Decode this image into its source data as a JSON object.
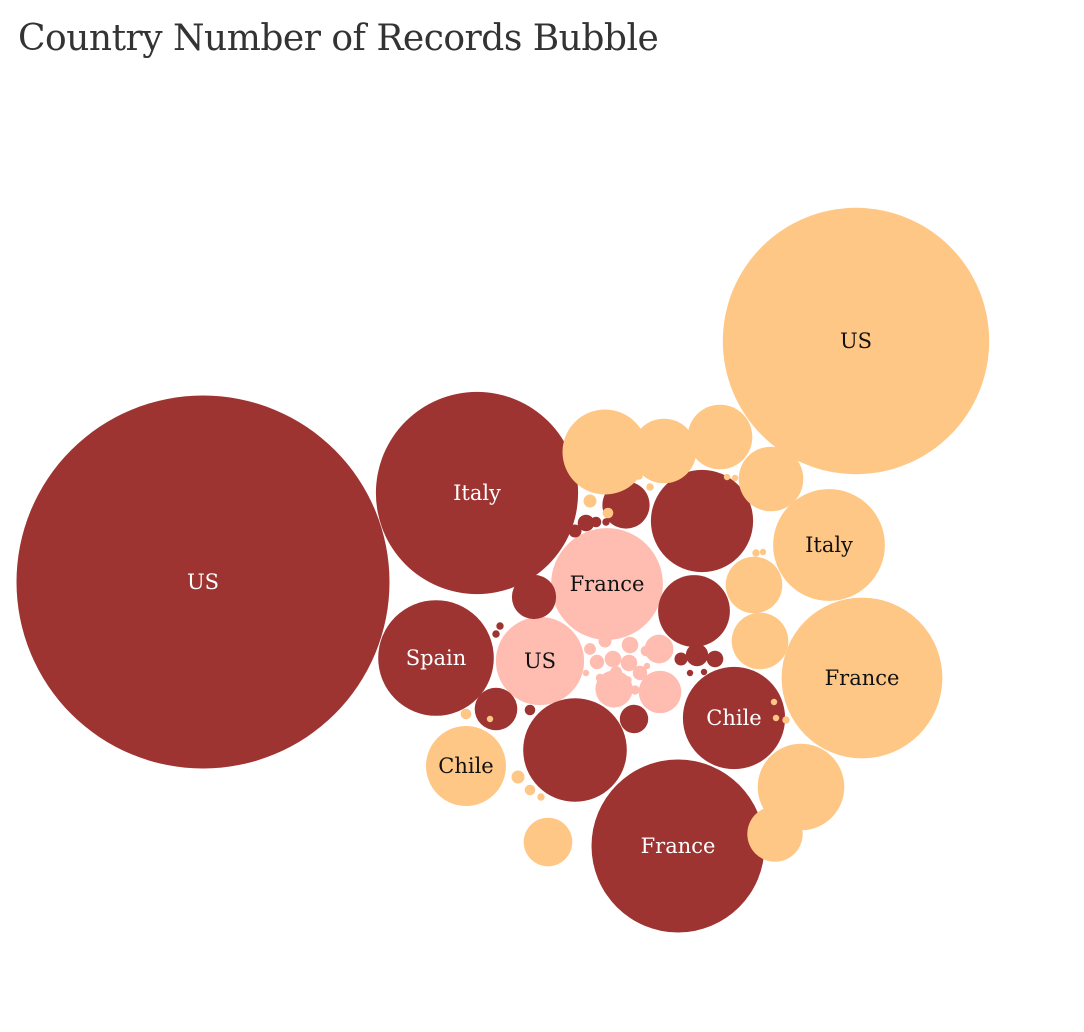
{
  "title": "Country Number of Records Bubble",
  "colors": {
    "dark": "#9e3431",
    "light": "#ffc785",
    "pink": "#ffbdb1",
    "label_on_dark": "#ffffff",
    "label_on_light": "#111111"
  },
  "chart_data": {
    "type": "bubble",
    "title": "Country Number of Records Bubble",
    "bubbles": [
      {
        "group": "dark",
        "label": "US",
        "value": 100
      },
      {
        "group": "light",
        "label": "US",
        "value": 51
      },
      {
        "group": "dark",
        "label": "Italy",
        "value": 29.4
      },
      {
        "group": "dark",
        "label": "France",
        "value": 21.5
      },
      {
        "group": "light",
        "label": "France",
        "value": 18.6
      },
      {
        "group": "pink",
        "label": "France",
        "value": 9.0
      },
      {
        "group": "light",
        "label": "Italy",
        "value": 9.0
      },
      {
        "group": "dark",
        "label": "Spain",
        "value": 9.6
      },
      {
        "group": "dark",
        "label": "Chile",
        "value": 7.5
      },
      {
        "group": "pink",
        "label": "US",
        "value": 5.6
      },
      {
        "group": "light",
        "label": "Chile",
        "value": 4.6
      },
      {
        "group": "dark",
        "label": "",
        "value": 7.7
      },
      {
        "group": "dark",
        "label": "",
        "value": 7.5
      },
      {
        "group": "dark",
        "label": "",
        "value": 3.7
      },
      {
        "group": "dark",
        "label": "",
        "value": 1.6
      },
      {
        "group": "dark",
        "label": "",
        "value": 1.4
      },
      {
        "group": "dark",
        "label": "",
        "value": 1.3
      },
      {
        "group": "dark",
        "label": "",
        "value": 0.58
      },
      {
        "group": "dark",
        "label": "",
        "value": 0.36
      },
      {
        "group": "dark",
        "label": "",
        "value": 0.2
      },
      {
        "group": "dark",
        "label": "",
        "value": 0.2
      },
      {
        "group": "dark",
        "label": "",
        "value": 0.12
      },
      {
        "group": "dark",
        "label": "",
        "value": 0.12
      },
      {
        "group": "dark",
        "label": "",
        "value": 0.08
      },
      {
        "group": "dark",
        "label": "",
        "value": 0.08
      },
      {
        "group": "dark",
        "label": "",
        "value": 0.04
      },
      {
        "group": "dark",
        "label": "",
        "value": 0.04
      },
      {
        "group": "dark",
        "label": "",
        "value": 0.04
      },
      {
        "group": "dark",
        "label": "",
        "value": 0.03
      },
      {
        "group": "dark",
        "label": "",
        "value": 0.03
      },
      {
        "group": "light",
        "label": "",
        "value": 5.2
      },
      {
        "group": "light",
        "label": "",
        "value": 5.4
      },
      {
        "group": "light",
        "label": "",
        "value": 3.0
      },
      {
        "group": "light",
        "label": "",
        "value": 3.0
      },
      {
        "group": "light",
        "label": "",
        "value": 3.0
      },
      {
        "group": "light",
        "label": "",
        "value": 2.3
      },
      {
        "group": "light",
        "label": "",
        "value": 2.3
      },
      {
        "group": "light",
        "label": "",
        "value": 1.7
      },
      {
        "group": "light",
        "label": "",
        "value": 2.2
      },
      {
        "group": "light",
        "label": "",
        "value": 0.12
      },
      {
        "group": "light",
        "label": "",
        "value": 0.12
      },
      {
        "group": "light",
        "label": "",
        "value": 0.08
      },
      {
        "group": "light",
        "label": "",
        "value": 0.08
      },
      {
        "group": "light",
        "label": "",
        "value": 0.08
      },
      {
        "group": "light",
        "label": "",
        "value": 0.04
      },
      {
        "group": "light",
        "label": "",
        "value": 0.04
      },
      {
        "group": "light",
        "label": "",
        "value": 0.04
      },
      {
        "group": "light",
        "label": "",
        "value": 0.04
      },
      {
        "group": "light",
        "label": "",
        "value": 0.04
      },
      {
        "group": "light",
        "label": "",
        "value": 0.03
      },
      {
        "group": "light",
        "label": "",
        "value": 0.03
      },
      {
        "group": "light",
        "label": "",
        "value": 0.03
      },
      {
        "group": "light",
        "label": "",
        "value": 0.03
      },
      {
        "group": "light",
        "label": "",
        "value": 0.03
      },
      {
        "group": "light",
        "label": "",
        "value": 0.03
      },
      {
        "group": "light",
        "label": "",
        "value": 0.03
      },
      {
        "group": "pink",
        "label": "",
        "value": 1.3
      },
      {
        "group": "pink",
        "label": "",
        "value": 1.0
      },
      {
        "group": "pink",
        "label": "",
        "value": 0.6
      },
      {
        "group": "pink",
        "label": "",
        "value": 0.2
      },
      {
        "group": "pink",
        "label": "",
        "value": 0.2
      },
      {
        "group": "pink",
        "label": "",
        "value": 0.2
      },
      {
        "group": "pink",
        "label": "",
        "value": 0.15
      },
      {
        "group": "pink",
        "label": "",
        "value": 0.15
      },
      {
        "group": "pink",
        "label": "",
        "value": 0.12
      },
      {
        "group": "pink",
        "label": "",
        "value": 0.1
      },
      {
        "group": "pink",
        "label": "",
        "value": 0.1
      },
      {
        "group": "pink",
        "label": "",
        "value": 0.08
      },
      {
        "group": "pink",
        "label": "",
        "value": 0.06
      },
      {
        "group": "pink",
        "label": "",
        "value": 0.06
      },
      {
        "group": "pink",
        "label": "",
        "value": 0.05
      },
      {
        "group": "pink",
        "label": "",
        "value": 0.04
      },
      {
        "group": "pink",
        "label": "",
        "value": 0.04
      },
      {
        "group": "pink",
        "label": "",
        "value": 0.03
      },
      {
        "group": "pink",
        "label": "",
        "value": 0.03
      },
      {
        "group": "pink",
        "label": "",
        "value": 0.03
      }
    ]
  }
}
